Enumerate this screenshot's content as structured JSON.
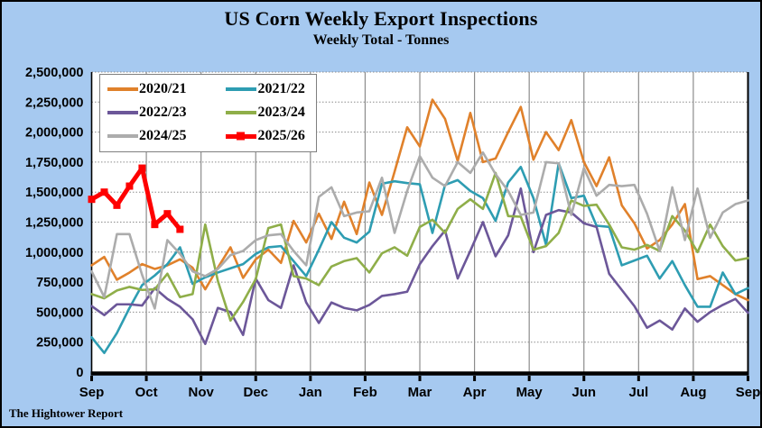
{
  "page": {
    "footer": "The Hightower Report"
  },
  "colors": {
    "background": "#A6C9F0",
    "plot_background": "#FFFFFF",
    "gridline": "#8C8C8C",
    "axis": "#000000",
    "text": "#000000",
    "legend_border": "#7F7F7F"
  },
  "chart_data": {
    "type": "line",
    "title": "US Corn Weekly Export Inspections",
    "subtitle": "Weekly Total - Tonnes",
    "xlabel": "",
    "ylabel": "",
    "x_labels": [
      "Sep",
      "Oct",
      "Nov",
      "Dec",
      "Jan",
      "Feb",
      "Mar",
      "Apr",
      "May",
      "Jun",
      "Jul",
      "Aug",
      "Sep"
    ],
    "x_unit": "week of marketing year",
    "weeks_per_year": 52,
    "ylim": [
      0,
      2500000
    ],
    "ytick_step": 250000,
    "grid": true,
    "legend_position": "top-left",
    "series": [
      {
        "name": "2020/21",
        "color": "#E0812B",
        "width": 2.6,
        "marker": "none",
        "values": [
          890000,
          960000,
          770000,
          830000,
          900000,
          860000,
          890000,
          940000,
          870000,
          690000,
          870000,
          1040000,
          785000,
          940000,
          1020000,
          910000,
          1260000,
          1080000,
          1320000,
          1110000,
          1420000,
          1150000,
          1580000,
          1310000,
          1670000,
          2040000,
          1880000,
          2270000,
          2110000,
          1760000,
          2160000,
          1750000,
          1780000,
          2000000,
          2210000,
          1770000,
          2000000,
          1850000,
          2100000,
          1750000,
          1550000,
          1790000,
          1390000,
          1240000,
          1030000,
          1100000,
          1230000,
          1400000,
          775000,
          800000,
          725000,
          650000,
          600000
        ]
      },
      {
        "name": "2021/22",
        "color": "#2E9DB2",
        "width": 2.6,
        "marker": "none",
        "values": [
          290000,
          160000,
          325000,
          535000,
          725000,
          805000,
          900000,
          1040000,
          735000,
          790000,
          830000,
          865000,
          900000,
          985000,
          1040000,
          1050000,
          925000,
          800000,
          1020000,
          1250000,
          1120000,
          1080000,
          1170000,
          1570000,
          1590000,
          1575000,
          1565000,
          1160000,
          1560000,
          1600000,
          1510000,
          1450000,
          1260000,
          1580000,
          1710000,
          1450000,
          1060000,
          1740000,
          1450000,
          1470000,
          1220000,
          1210000,
          890000,
          930000,
          970000,
          780000,
          925000,
          725000,
          545000,
          545000,
          830000,
          650000,
          700000
        ]
      },
      {
        "name": "2022/23",
        "color": "#6C5799",
        "width": 2.6,
        "marker": "none",
        "values": [
          550000,
          475000,
          565000,
          565000,
          555000,
          700000,
          610000,
          545000,
          440000,
          235000,
          535000,
          500000,
          310000,
          780000,
          600000,
          535000,
          890000,
          580000,
          410000,
          580000,
          535000,
          515000,
          560000,
          635000,
          650000,
          670000,
          900000,
          1050000,
          1180000,
          780000,
          1010000,
          1250000,
          965000,
          1140000,
          1530000,
          1000000,
          1310000,
          1350000,
          1330000,
          1240000,
          1210000,
          820000,
          685000,
          550000,
          370000,
          430000,
          355000,
          530000,
          420000,
          500000,
          560000,
          610000,
          495000
        ]
      },
      {
        "name": "2023/24",
        "color": "#8FAE49",
        "width": 2.6,
        "marker": "none",
        "values": [
          650000,
          615000,
          680000,
          710000,
          685000,
          690000,
          820000,
          625000,
          650000,
          1230000,
          760000,
          430000,
          585000,
          775000,
          1200000,
          1230000,
          800000,
          780000,
          725000,
          880000,
          925000,
          950000,
          830000,
          990000,
          1040000,
          970000,
          1210000,
          1270000,
          1160000,
          1360000,
          1440000,
          1360000,
          1660000,
          1300000,
          1295000,
          1020000,
          1050000,
          1160000,
          1430000,
          1385000,
          1395000,
          1230000,
          1040000,
          1020000,
          1060000,
          1010000,
          1300000,
          1180000,
          1000000,
          1230000,
          1050000,
          930000,
          950000
        ]
      },
      {
        "name": "2024/25",
        "color": "#ACACAC",
        "width": 2.6,
        "marker": "none",
        "values": [
          840000,
          625000,
          1150000,
          1150000,
          810000,
          530000,
          1100000,
          985000,
          840000,
          800000,
          860000,
          975000,
          1010000,
          1100000,
          1140000,
          1150000,
          1010000,
          890000,
          1460000,
          1540000,
          1300000,
          1330000,
          1340000,
          1620000,
          1160000,
          1510000,
          1800000,
          1620000,
          1550000,
          1750000,
          1660000,
          1830000,
          1650000,
          1510000,
          1310000,
          1330000,
          1750000,
          1740000,
          1310000,
          1700000,
          1470000,
          1560000,
          1550000,
          1560000,
          1320000,
          1010000,
          1540000,
          1100000,
          1530000,
          1120000,
          1330000,
          1400000,
          1430000
        ]
      },
      {
        "name": "2025/26",
        "color": "#FE0000",
        "width": 5,
        "marker": "square",
        "values": [
          1440000,
          1500000,
          1390000,
          1550000,
          1700000,
          1230000,
          1320000,
          1190000
        ]
      }
    ]
  }
}
